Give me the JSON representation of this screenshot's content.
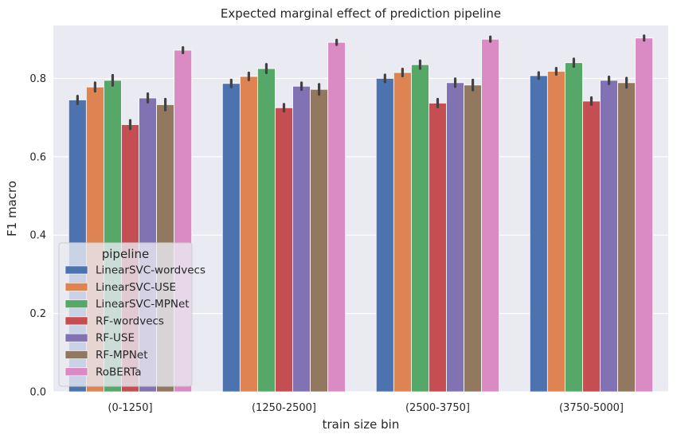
{
  "chart_data": {
    "type": "bar",
    "title": "Expected marginal effect of prediction pipeline",
    "xlabel": "train size bin",
    "ylabel": "F1 macro",
    "ylim": [
      0,
      0.935
    ],
    "yticks": [
      0.0,
      0.2,
      0.4,
      0.6,
      0.8
    ],
    "ytick_labels": [
      "0.0",
      "0.2",
      "0.4",
      "0.6",
      "0.8"
    ],
    "grid": true,
    "legend_title": "pipeline",
    "legend_position": "lower-left",
    "categories": [
      "(0-1250]",
      "(1250-2500]",
      "(2500-3750]",
      "(3750-5000]"
    ],
    "series": [
      {
        "name": "LinearSVC-wordvecs",
        "color": "#4c72b0",
        "values": [
          0.745,
          0.787,
          0.8,
          0.807
        ],
        "err": [
          0.01,
          0.009,
          0.009,
          0.008
        ]
      },
      {
        "name": "LinearSVC-USE",
        "color": "#dd8452",
        "values": [
          0.778,
          0.805,
          0.815,
          0.818
        ],
        "err": [
          0.011,
          0.009,
          0.009,
          0.008
        ]
      },
      {
        "name": "LinearSVC-MPNet",
        "color": "#55a868",
        "values": [
          0.795,
          0.825,
          0.835,
          0.84
        ],
        "err": [
          0.013,
          0.011,
          0.01,
          0.01
        ]
      },
      {
        "name": "RF-wordvecs",
        "color": "#c44e52",
        "values": [
          0.682,
          0.725,
          0.737,
          0.742
        ],
        "err": [
          0.011,
          0.009,
          0.01,
          0.009
        ]
      },
      {
        "name": "RF-USE",
        "color": "#8172b3",
        "values": [
          0.75,
          0.78,
          0.789,
          0.795
        ],
        "err": [
          0.011,
          0.009,
          0.01,
          0.009
        ]
      },
      {
        "name": "RF-MPNet",
        "color": "#937860",
        "values": [
          0.733,
          0.772,
          0.783,
          0.789
        ],
        "err": [
          0.014,
          0.013,
          0.013,
          0.012
        ]
      },
      {
        "name": "RoBERTa",
        "color": "#da8bc3",
        "values": [
          0.872,
          0.892,
          0.9,
          0.903
        ],
        "err": [
          0.007,
          0.006,
          0.006,
          0.006
        ]
      }
    ]
  }
}
